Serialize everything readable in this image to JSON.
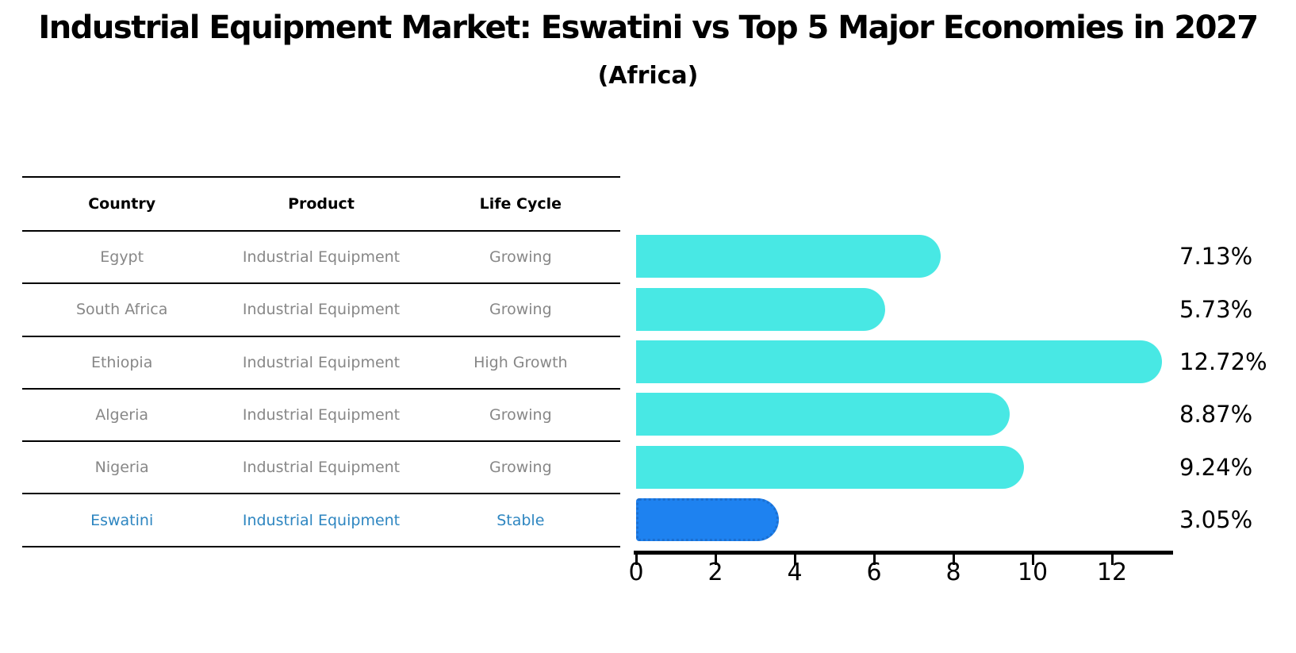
{
  "title": "Industrial Equipment Market: Eswatini vs Top 5 Major Economies in 2027",
  "subtitle": "(Africa)",
  "table": {
    "headers": [
      "Country",
      "Product",
      "Life Cycle"
    ],
    "rows": [
      {
        "country": "Egypt",
        "product": "Industrial Equipment",
        "life_cycle": "Growing",
        "highlight": false
      },
      {
        "country": "South Africa",
        "product": "Industrial Equipment",
        "life_cycle": "Growing",
        "highlight": false
      },
      {
        "country": "Ethiopia",
        "product": "Industrial Equipment",
        "life_cycle": "High Growth",
        "highlight": false
      },
      {
        "country": "Algeria",
        "product": "Industrial Equipment",
        "life_cycle": "Growing",
        "highlight": false
      },
      {
        "country": "Nigeria",
        "product": "Industrial Equipment",
        "life_cycle": "Growing",
        "highlight": false
      },
      {
        "country": "Eswatini",
        "product": "Industrial Equipment",
        "life_cycle": "Stable",
        "highlight": true
      }
    ]
  },
  "chart_data": {
    "type": "bar",
    "orientation": "horizontal",
    "title": "Industrial Equipment Market: Eswatini vs Top 5 Major Economies in 2027 (Africa)",
    "categories": [
      "Egypt",
      "South Africa",
      "Ethiopia",
      "Algeria",
      "Nigeria",
      "Eswatini"
    ],
    "values": [
      7.13,
      5.73,
      12.72,
      8.87,
      9.24,
      3.05
    ],
    "labels": [
      "7.13%",
      "5.73%",
      "12.72%",
      "8.87%",
      "9.24%",
      "3.05%"
    ],
    "xlabel": "",
    "ylabel": "",
    "xlim": [
      0,
      13.5
    ],
    "xticks": [
      0,
      2,
      4,
      6,
      8,
      10,
      12
    ],
    "xtick_labels": [
      "0",
      "2",
      "4",
      "6",
      "8",
      "10",
      "12"
    ],
    "grid": false,
    "legend": "none",
    "highlight_index": 5
  },
  "colors": {
    "bar": "#48E8E4",
    "highlight_bar": "#1E82F0",
    "highlight_border": "#1B6FD0",
    "table_text": "#878787",
    "highlight_text": "#2E86C1",
    "axis": "#000000"
  }
}
